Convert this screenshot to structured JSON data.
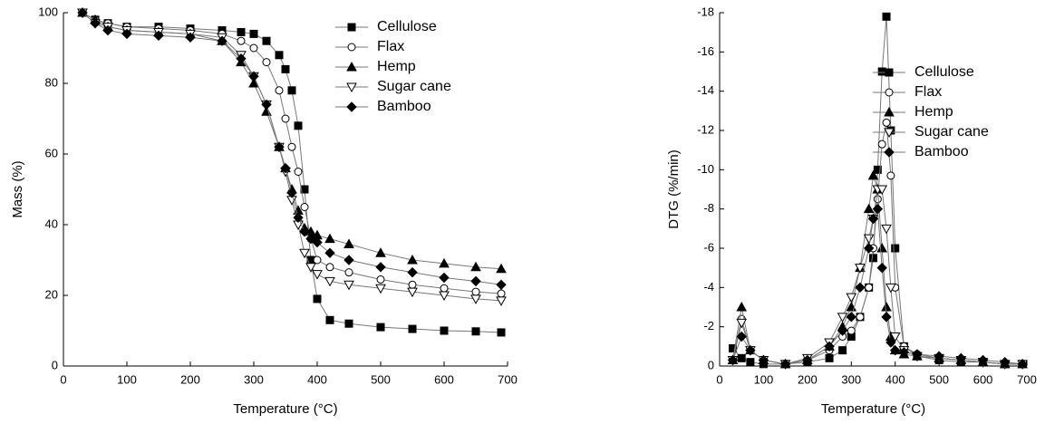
{
  "chart_data": [
    {
      "type": "line",
      "xlabel": "Temperature (°C)",
      "ylabel": "Mass (%)",
      "xlim": [
        0,
        700
      ],
      "xticks": [
        0,
        100,
        200,
        300,
        400,
        500,
        600,
        700
      ],
      "ylim": [
        0,
        100
      ],
      "yticks": [
        0,
        20,
        40,
        60,
        80,
        100
      ],
      "legend": "upper right",
      "x": [
        30,
        50,
        70,
        100,
        150,
        200,
        250,
        280,
        300,
        320,
        340,
        350,
        360,
        370,
        380,
        390,
        400,
        420,
        450,
        500,
        550,
        600,
        650,
        690
      ],
      "series": [
        {
          "name": "Cellulose",
          "color": "#000000",
          "marker": "square",
          "values": [
            100,
            98,
            97,
            96,
            96,
            95.5,
            95,
            94.5,
            94,
            92,
            88,
            84,
            78,
            68,
            50,
            30,
            19,
            13,
            12,
            11,
            10.5,
            10,
            9.8,
            9.5
          ]
        },
        {
          "name": "Flax",
          "color": "#000000",
          "marker": "circle-open",
          "values": [
            100,
            98,
            97,
            96,
            95.5,
            95,
            94,
            92,
            90,
            86,
            78,
            70,
            62,
            55,
            45,
            36,
            30,
            28,
            26.5,
            24.5,
            23,
            22,
            21,
            20.5
          ]
        },
        {
          "name": "Hemp",
          "color": "#000000",
          "marker": "triangle",
          "values": [
            100,
            98,
            96,
            95,
            94.5,
            94,
            92,
            86,
            80,
            72,
            62,
            56,
            50,
            44,
            39,
            38,
            37,
            36,
            34.5,
            32,
            30,
            29,
            28,
            27.5
          ]
        },
        {
          "name": "Sugar cane",
          "color": "#000000",
          "marker": "triangle-down-open",
          "values": [
            100,
            97,
            96,
            95,
            94.5,
            94,
            93,
            88,
            82,
            74,
            62,
            55,
            47,
            40,
            32,
            28,
            26,
            24,
            23,
            22,
            21,
            20,
            19,
            18.5
          ]
        },
        {
          "name": "Bamboo",
          "color": "#000000",
          "marker": "diamond",
          "values": [
            100,
            97,
            95,
            94,
            93.5,
            93,
            92,
            87,
            82,
            74,
            62,
            56,
            49,
            42,
            38,
            36,
            35,
            32,
            30,
            28,
            26.5,
            25,
            24,
            23
          ]
        }
      ]
    },
    {
      "type": "line",
      "xlabel": "Temperature (°C)",
      "ylabel": "DTG (%/min)",
      "xlim": [
        0,
        700
      ],
      "xticks": [
        0,
        100,
        200,
        300,
        400,
        500,
        600,
        700
      ],
      "ylim": [
        0,
        -18
      ],
      "yticks": [
        0,
        -2,
        -4,
        -6,
        -8,
        -10,
        -12,
        -14,
        -16,
        -18
      ],
      "legend": "upper right",
      "x": [
        30,
        50,
        70,
        100,
        150,
        200,
        250,
        280,
        300,
        320,
        340,
        350,
        360,
        370,
        380,
        390,
        400,
        420,
        450,
        500,
        550,
        600,
        650,
        690
      ],
      "series": [
        {
          "name": "Cellulose",
          "color": "#000000",
          "marker": "square",
          "values": [
            -0.9,
            -0.4,
            -0.2,
            -0.1,
            -0.1,
            -0.2,
            -0.4,
            -0.8,
            -1.5,
            -2.5,
            -4,
            -5.5,
            -10,
            -15,
            -17.8,
            -12,
            -6,
            -1,
            -0.5,
            -0.3,
            -0.2,
            -0.2,
            -0.1,
            -0.1
          ]
        },
        {
          "name": "Flax",
          "color": "#000000",
          "marker": "circle-open",
          "values": [
            -0.3,
            -2.4,
            -0.8,
            -0.3,
            -0.1,
            -0.3,
            -0.8,
            -1.5,
            -1.8,
            -2.5,
            -4,
            -6,
            -8.5,
            -11.3,
            -12.4,
            -9.7,
            -4,
            -1,
            -0.6,
            -0.4,
            -0.3,
            -0.2,
            -0.1,
            -0.1
          ]
        },
        {
          "name": "Hemp",
          "color": "#000000",
          "marker": "triangle",
          "values": [
            -0.3,
            -3,
            -0.8,
            -0.3,
            -0.1,
            -0.3,
            -1,
            -2,
            -3,
            -5,
            -8,
            -9.7,
            -9,
            -6,
            -3,
            -1.5,
            -0.8,
            -0.6,
            -0.5,
            -0.4,
            -0.3,
            -0.2,
            -0.1,
            -0.1
          ]
        },
        {
          "name": "Sugar cane",
          "color": "#000000",
          "marker": "triangle-down-open",
          "values": [
            -0.3,
            -2.2,
            -0.8,
            -0.3,
            -0.1,
            -0.4,
            -1.2,
            -2.5,
            -3.5,
            -5,
            -6.5,
            -7.5,
            -9,
            -9,
            -7,
            -4,
            -1.5,
            -0.8,
            -0.5,
            -0.4,
            -0.3,
            -0.2,
            -0.1,
            -0.1
          ]
        },
        {
          "name": "Bamboo",
          "color": "#000000",
          "marker": "diamond",
          "values": [
            -0.3,
            -1.5,
            -0.8,
            -0.3,
            -0.1,
            -0.3,
            -1,
            -1.8,
            -2.5,
            -4,
            -6,
            -7.5,
            -8,
            -5,
            -2.5,
            -1.2,
            -0.8,
            -0.7,
            -0.6,
            -0.5,
            -0.4,
            -0.3,
            -0.2,
            -0.1
          ]
        }
      ]
    }
  ]
}
